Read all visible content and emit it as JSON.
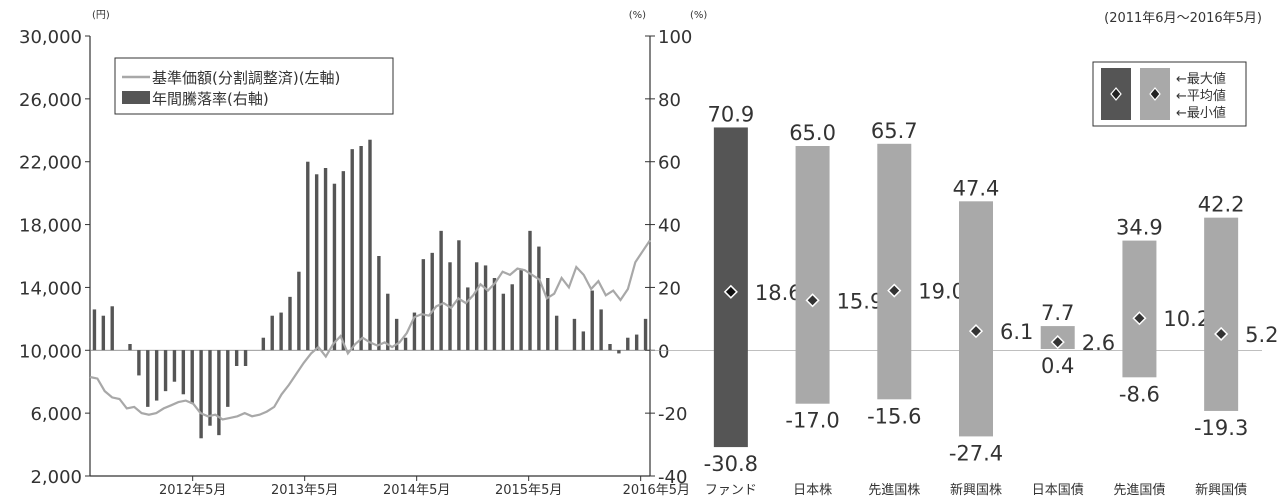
{
  "colors": {
    "dark_bar": "#555555",
    "light_bar": "#a9a9a9",
    "line": "#a8a8a8",
    "axis": "#333333",
    "text": "#333333"
  },
  "chart_data": [
    {
      "type": "bar+line",
      "left_unit": "(円)",
      "right_unit": "(%)",
      "left_ticks": [
        "30,000",
        "26,000",
        "22,000",
        "18,000",
        "14,000",
        "10,000",
        "6,000",
        "2,000"
      ],
      "left_ylim": [
        2000,
        30000
      ],
      "right_ticks": [
        "100",
        "80",
        "60",
        "40",
        "20",
        "0",
        "-20",
        "-40"
      ],
      "right_ylim": [
        -40,
        100
      ],
      "x_labels": [
        "2012年5月",
        "2013年5月",
        "2014年5月",
        "2015年5月",
        "2016年5月"
      ],
      "legend": {
        "line_label": "基準価額(分割調整済)(左軸)",
        "bar_label": "年間騰落率(右軸)"
      },
      "series": [
        {
          "name": "年間騰落率(右軸)",
          "kind": "bar",
          "values": [
            13,
            11,
            14,
            0,
            2,
            -8,
            -18,
            -16,
            -13,
            -10,
            -14,
            -17,
            -28,
            -24,
            -27,
            -18,
            -5,
            -5,
            0,
            4,
            11,
            12,
            17,
            25,
            60,
            56,
            58,
            53,
            57,
            64,
            65,
            67,
            30,
            18,
            10,
            4,
            12,
            29,
            31,
            38,
            28,
            35,
            20,
            28,
            27,
            23,
            18,
            21,
            26,
            38,
            33,
            23,
            11,
            0,
            10,
            6,
            19,
            13,
            2,
            -1,
            4,
            5,
            10
          ]
        },
        {
          "name": "基準価額(分割調整済)(左軸)",
          "kind": "line",
          "values": [
            8300,
            8200,
            7400,
            7000,
            6900,
            6300,
            6400,
            6000,
            5900,
            6000,
            6300,
            6500,
            6700,
            6800,
            6600,
            6000,
            5800,
            5900,
            5600,
            5700,
            5800,
            6000,
            5800,
            5900,
            6100,
            6400,
            7200,
            7800,
            8500,
            9200,
            9800,
            10200,
            9600,
            10400,
            10900,
            9800,
            10400,
            10800,
            10500,
            10300,
            10500,
            10200,
            10500,
            11100,
            12100,
            12300,
            12200,
            12800,
            13000,
            12700,
            13300,
            13000,
            13500,
            14200,
            13800,
            14300,
            15000,
            14800,
            15200,
            15100,
            14800,
            14500,
            13300,
            13600,
            14600,
            14000,
            15300,
            14800,
            13900,
            14400,
            13500,
            13800,
            13200,
            13900,
            15600,
            16300,
            17000
          ]
        }
      ]
    },
    {
      "type": "range-bar",
      "title": "(2011年6月～2016年5月)",
      "unit": "(%)",
      "y_ticks": [
        "100",
        "80",
        "60",
        "40",
        "20",
        "0",
        "-20",
        "-40"
      ],
      "ylim": [
        -40,
        100
      ],
      "legend": [
        "最大値",
        "平均値",
        "最小値"
      ],
      "categories": [
        "ファンド",
        "日本株",
        "先進国株",
        "新興国株",
        "日本国債",
        "先進国債",
        "新興国債"
      ],
      "max": [
        70.9,
        65.0,
        65.7,
        47.4,
        7.7,
        34.9,
        42.2
      ],
      "mean": [
        18.6,
        15.9,
        19.0,
        6.1,
        2.6,
        10.2,
        5.2
      ],
      "min": [
        -30.8,
        -17.0,
        -15.6,
        -27.4,
        0.4,
        -8.6,
        -19.3
      ],
      "max_labels": [
        "70.9",
        "65.0",
        "65.7",
        "47.4",
        "7.7",
        "34.9",
        "42.2"
      ],
      "mean_labels": [
        "18.6",
        "15.9",
        "19.0",
        "6.1",
        "2.6",
        "10.2",
        "5.2"
      ],
      "min_labels": [
        "-30.8",
        "-17.0",
        "-15.6",
        "-27.4",
        "0.4",
        "-8.6",
        "-19.3"
      ]
    }
  ]
}
